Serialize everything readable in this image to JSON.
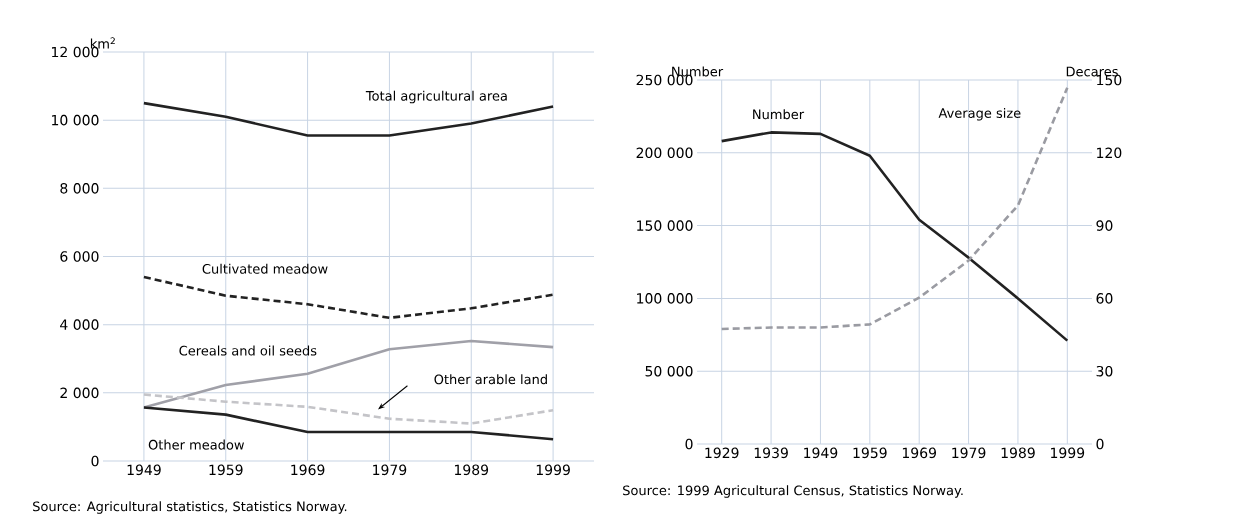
{
  "chart_data": [
    {
      "type": "line",
      "ylabel": "km$^{2}$",
      "x": [
        1949,
        1959,
        1969,
        1979,
        1989,
        1999
      ],
      "xlim": [
        1944,
        2004
      ],
      "xticks": [
        1949,
        1959,
        1969,
        1979,
        1989,
        1999
      ],
      "ylim": [
        0,
        12000
      ],
      "yticks": [
        0,
        {
          "value": 2000,
          "label": "2 000"
        },
        {
          "value": 4000,
          "label": "4 000"
        },
        {
          "value": 6000,
          "label": "6 000"
        },
        {
          "value": 8000,
          "label": "8 000"
        },
        {
          "value": 10000,
          "label": "10 000"
        },
        {
          "value": 12000,
          "label": "12 000"
        }
      ],
      "grid": true,
      "series": [
        {
          "name": "Total agricultural area",
          "color": "#222222",
          "line_style": "solid",
          "values": [
            10500,
            10100,
            9550,
            9550,
            9900,
            10400
          ]
        },
        {
          "name": "Cultivated meadow",
          "color": "#222222",
          "line_style": "dashed",
          "values": [
            5400,
            4850,
            4600,
            4200,
            4480,
            4880
          ]
        },
        {
          "name": "Cereals and oil seeds",
          "color": "#a0a0a8",
          "line_style": "solid",
          "values": [
            1570,
            2230,
            2560,
            3280,
            3520,
            3340
          ]
        },
        {
          "name": "Other arable land",
          "color": "#c4c4c8",
          "line_style": "dashed",
          "values": [
            1950,
            1740,
            1590,
            1240,
            1100,
            1490
          ]
        },
        {
          "name": "Other meadow",
          "color": "#222222",
          "line_style": "solid",
          "values": [
            1570,
            1360,
            850,
            850,
            850,
            640
          ]
        }
      ],
      "annotations": [
        "Source: Agricultural statistics, Statistics Norway."
      ]
    },
    {
      "type": "line",
      "ylabel": "Number",
      "y2label": "Decares",
      "x": [
        1929,
        1939,
        1949,
        1959,
        1969,
        1979,
        1989,
        1999
      ],
      "xlim": [
        1924,
        2004
      ],
      "xticks": [
        1929,
        1939,
        1949,
        1959,
        1969,
        1979,
        1989,
        1999
      ],
      "ylim": [
        0,
        250000
      ],
      "yticks": [
        0,
        {
          "value": 50000,
          "label": "50 000"
        },
        {
          "value": 100000,
          "label": "100 000"
        },
        {
          "value": 150000,
          "label": "150 000"
        },
        {
          "value": 200000,
          "label": "200 000"
        },
        {
          "value": 250000,
          "label": "250 000"
        }
      ],
      "y2lim": [
        0,
        150
      ],
      "y2ticks": [
        0,
        30,
        60,
        90,
        120,
        150
      ],
      "grid": true,
      "series": [
        {
          "name": "Number",
          "color": "#222222",
          "line_style": "solid",
          "values": [
            208000,
            214000,
            213000,
            198000,
            154000,
            128000,
            100000,
            71000
          ]
        },
        {
          "name": "Average size",
          "color": "#9a9ba2",
          "line_style": "dashed",
          "axis": "y2",
          "values": [
            47.4,
            48,
            48,
            49.3,
            60.3,
            75.6,
            98.3,
            146.8
          ]
        }
      ],
      "annotations": [
        "Source: 1999 Agricultural Census, Statistics Norway."
      ]
    }
  ]
}
